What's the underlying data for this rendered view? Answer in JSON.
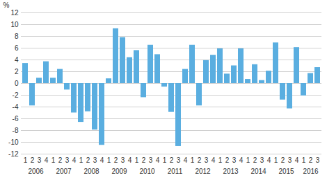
{
  "chart_data": {
    "type": "bar",
    "y_label": "%",
    "categories": [
      "1",
      "2",
      "3",
      "4",
      "1",
      "2",
      "3",
      "4",
      "1",
      "2",
      "3",
      "4",
      "1",
      "2",
      "3",
      "4",
      "1",
      "2",
      "3",
      "4",
      "1",
      "2",
      "3",
      "4",
      "1",
      "2",
      "3",
      "4",
      "1",
      "2",
      "3",
      "4",
      "1",
      "2",
      "3",
      "4",
      "1",
      "2",
      "3",
      "4",
      "1",
      "2",
      "3"
    ],
    "category_groups": [
      {
        "label": "2006",
        "count": 4
      },
      {
        "label": "2007",
        "count": 4
      },
      {
        "label": "2008",
        "count": 4
      },
      {
        "label": "2009",
        "count": 4
      },
      {
        "label": "2010",
        "count": 4
      },
      {
        "label": "2011",
        "count": 4
      },
      {
        "label": "2012",
        "count": 4
      },
      {
        "label": "2013",
        "count": 4
      },
      {
        "label": "2014",
        "count": 4
      },
      {
        "label": "2015",
        "count": 4
      },
      {
        "label": "2016",
        "count": 3
      }
    ],
    "values": [
      3.4,
      -3.8,
      0.9,
      3.7,
      0.9,
      2.4,
      -1.1,
      -5.0,
      -6.6,
      -4.8,
      -7.9,
      -10.5,
      0.8,
      9.3,
      7.8,
      4.4,
      5.6,
      -2.4,
      6.5,
      4.9,
      -0.6,
      -4.9,
      -10.7,
      2.4,
      6.5,
      -3.8,
      3.9,
      4.8,
      5.9,
      1.6,
      3.0,
      5.9,
      0.7,
      3.2,
      0.5,
      2.1,
      6.9,
      -2.8,
      -4.3,
      6.1,
      -2.1,
      1.7,
      2.7
    ],
    "color": "#5aaee0",
    "ylim": [
      -12,
      12
    ],
    "yticks": [
      -12,
      -10,
      -8,
      -6,
      -4,
      -2,
      0,
      2,
      4,
      6,
      8,
      10,
      12
    ],
    "grid": true
  }
}
